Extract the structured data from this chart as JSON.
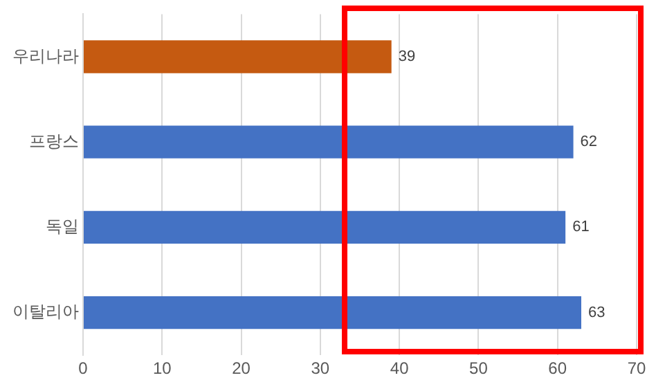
{
  "chart_data": {
    "type": "bar",
    "orientation": "horizontal",
    "categories": [
      "우리나라",
      "프랑스",
      "독일",
      "이탈리아"
    ],
    "values": [
      39,
      62,
      61,
      63
    ],
    "colors": [
      "#c55a11",
      "#4472c4",
      "#4472c4",
      "#4472c4"
    ],
    "xlim": [
      0,
      70
    ],
    "xticks": [
      0,
      10,
      20,
      30,
      40,
      50,
      60,
      70
    ],
    "grid": "x",
    "data_labels": true
  }
}
